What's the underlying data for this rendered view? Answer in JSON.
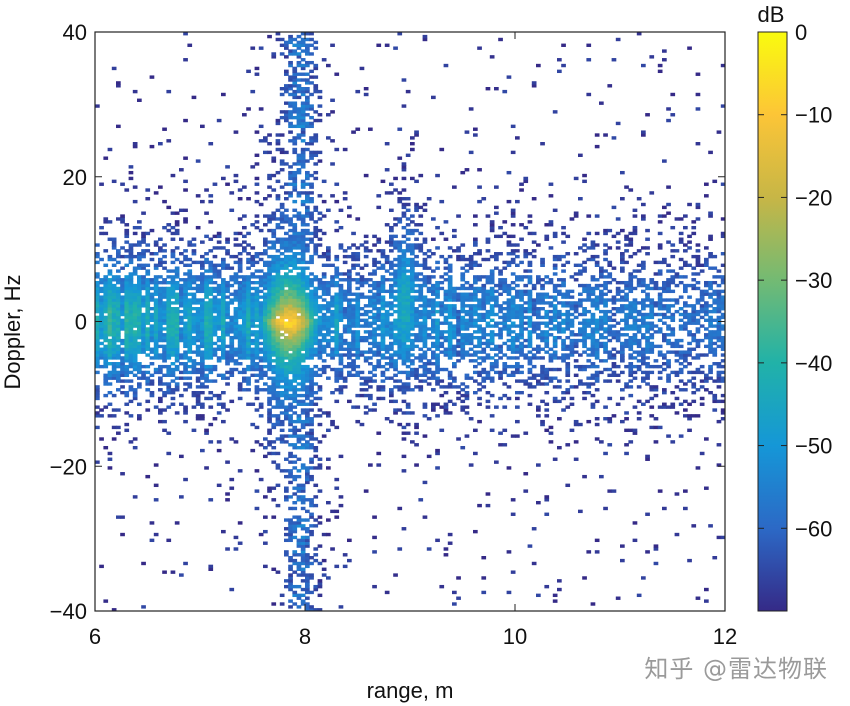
{
  "chart_data": {
    "type": "heatmap",
    "xlabel": "range, m",
    "ylabel": "Doppler, Hz",
    "xlim": [
      6,
      12
    ],
    "ylim": [
      -40,
      40
    ],
    "x_ticks": [
      6,
      8,
      10,
      12
    ],
    "y_ticks": [
      -40,
      -20,
      0,
      20,
      40
    ],
    "colorbar": {
      "label": "dB",
      "range": [
        -70,
        0
      ],
      "ticks": [
        0,
        -10,
        -20,
        -30,
        -40,
        -50,
        -60
      ],
      "colormap": "parula",
      "colors": [
        "#352a87",
        "#2c69c6",
        "#1597d7",
        "#21b2a8",
        "#73ba73",
        "#c7b646",
        "#fcc537",
        "#f9fb0e"
      ]
    },
    "background_color": "#ffffff",
    "peak": {
      "range_m": 7.8,
      "doppler_hz": 0,
      "level_db": -10
    },
    "features": [
      {
        "description": "main target column",
        "range_m": [
          7.5,
          8.2
        ],
        "doppler_hz": [
          -20,
          22
        ],
        "level_db": [
          -60,
          -35
        ]
      },
      {
        "description": "sparse vertical streak",
        "range_m": [
          7.8,
          8.1
        ],
        "doppler_hz": [
          -40,
          40
        ],
        "level_db": [
          -68,
          -60
        ]
      },
      {
        "description": "clutter band near zero Doppler",
        "range_m": [
          6,
          12
        ],
        "doppler_hz": [
          -12,
          12
        ],
        "level_db": [
          -68,
          -50
        ]
      },
      {
        "description": "secondary column",
        "range_m": [
          8.8,
          9.1
        ],
        "doppler_hz": [
          -12,
          17
        ],
        "level_db": [
          -66,
          -55
        ]
      }
    ]
  },
  "watermark": "知乎 @雷达物联"
}
